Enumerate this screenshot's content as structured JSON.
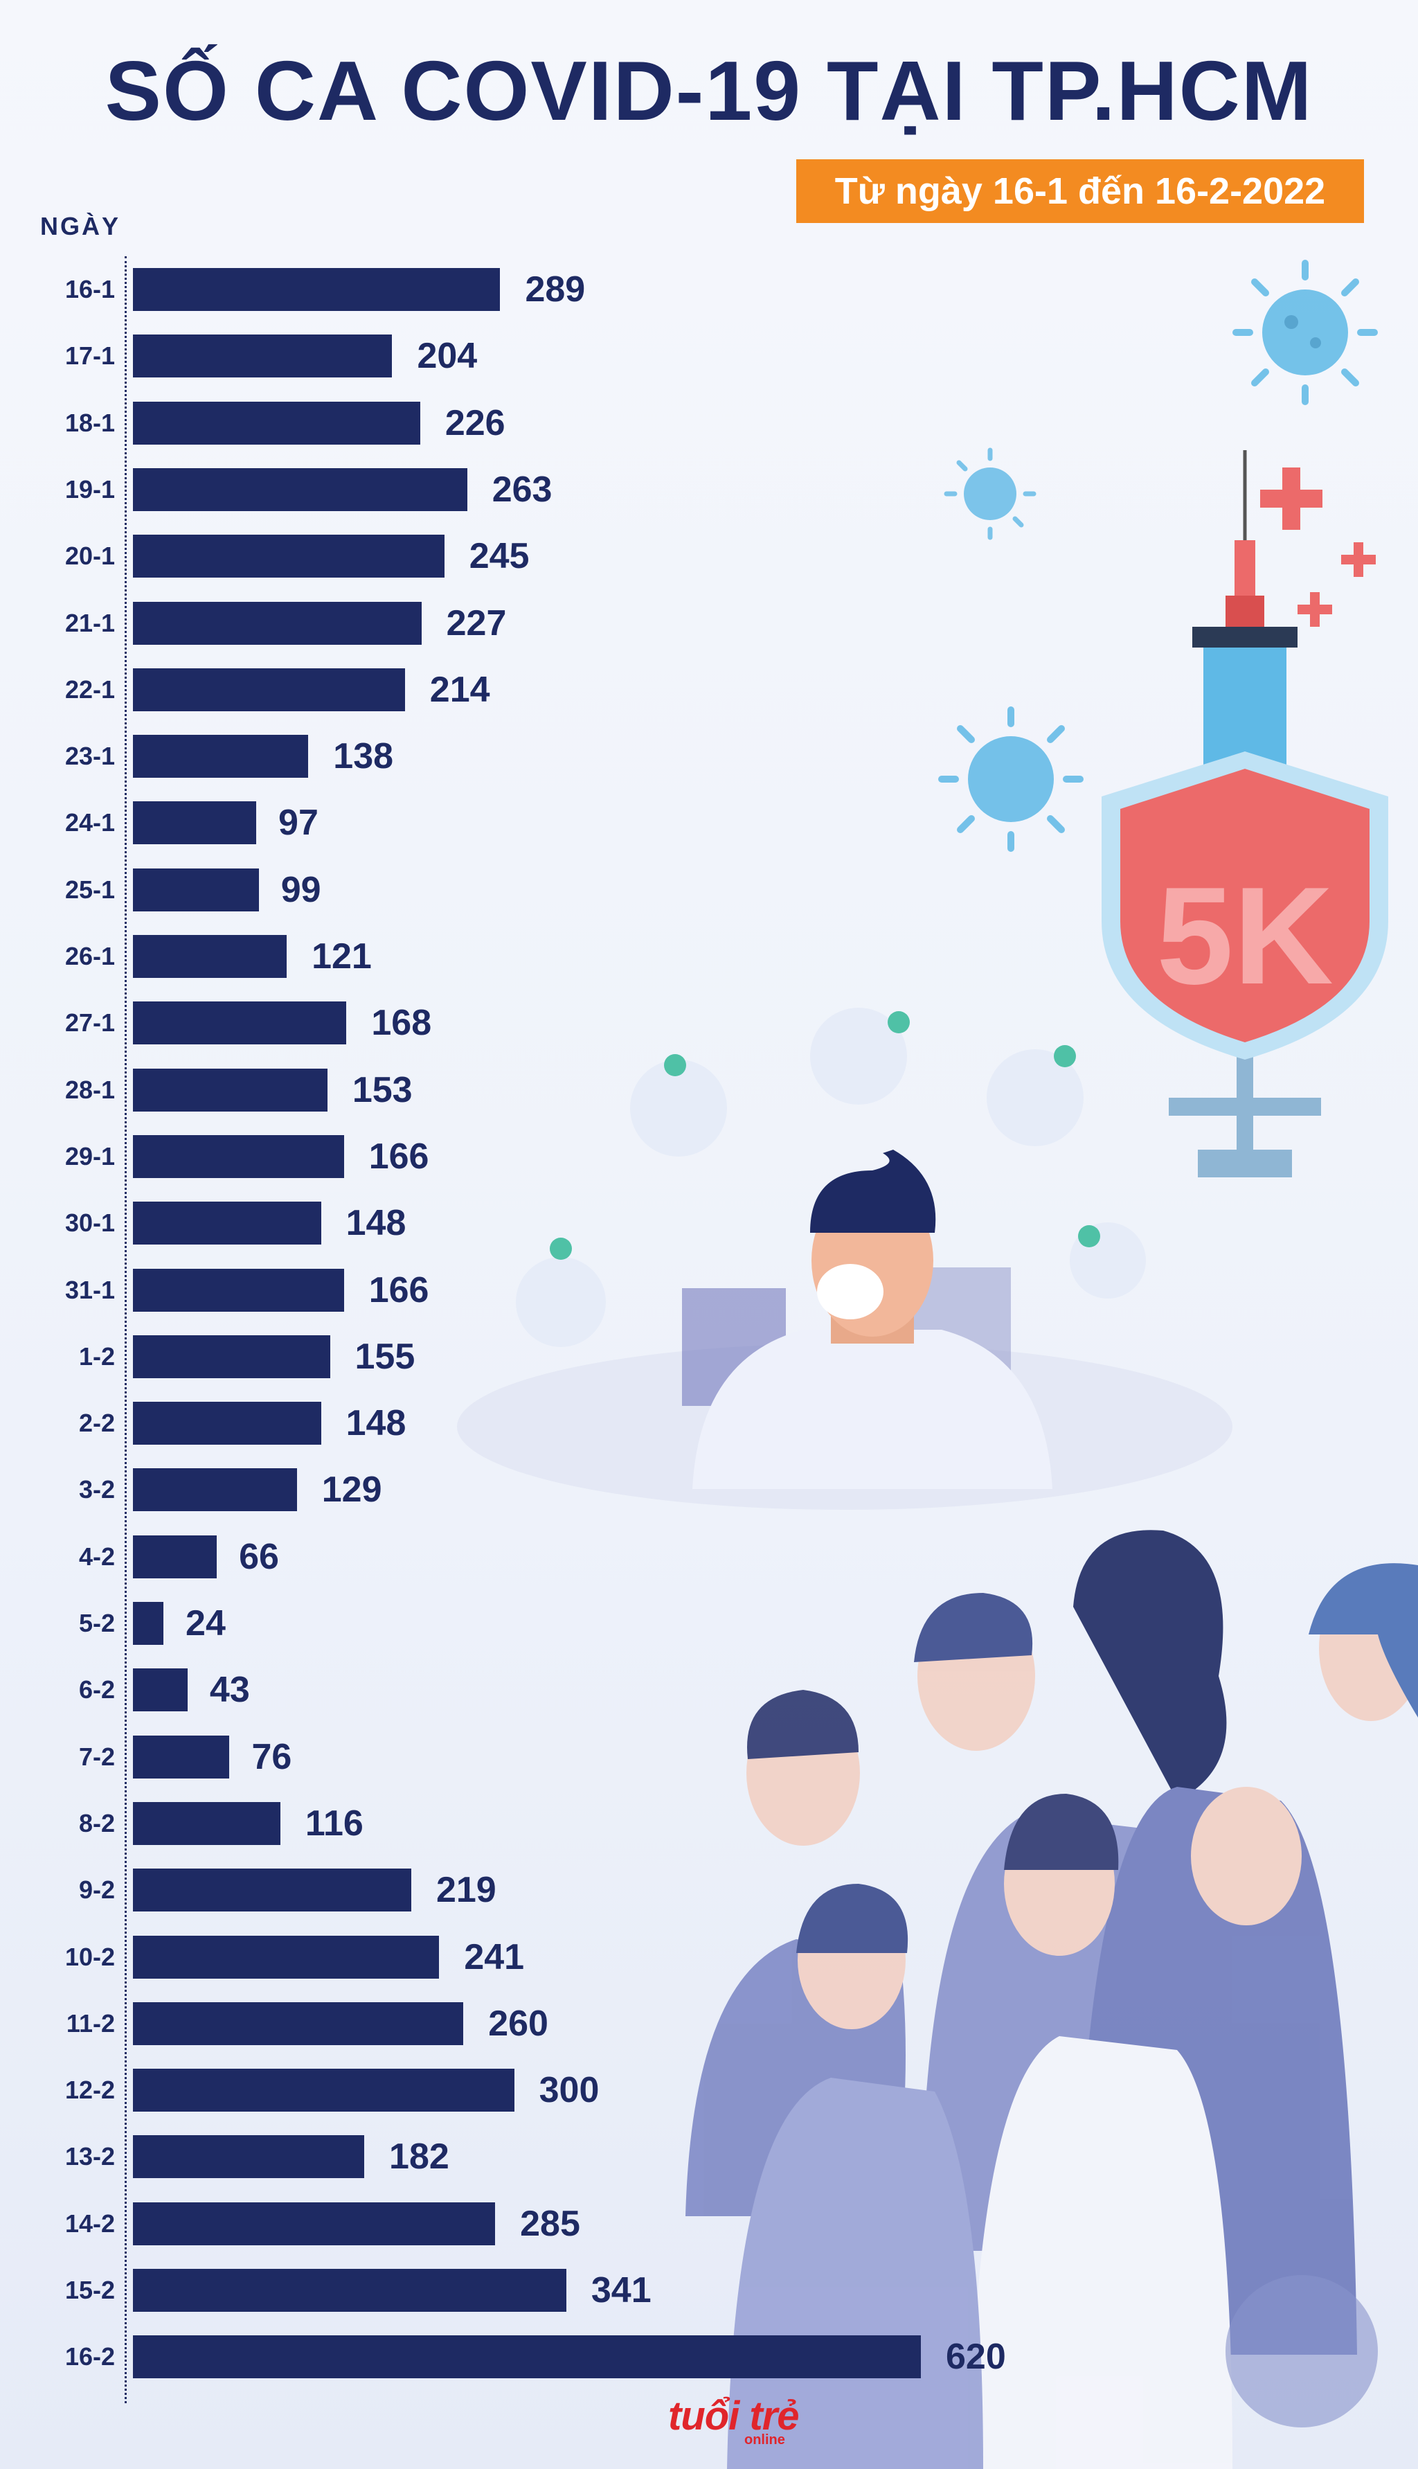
{
  "header": {
    "title": "SỐ CA COVID-19 TẠI TP.HCM",
    "subtitle": "Từ ngày 16-1 đến 16-2-2022"
  },
  "shield_text": "5K",
  "logo": {
    "main": "tuổi trẻ",
    "sub": "online"
  },
  "colors": {
    "bar": "#1e2a63",
    "accent": "#f38b21",
    "logo": "#e0252b"
  },
  "chart_data": {
    "type": "bar",
    "orientation": "horizontal",
    "title": "SỐ CA COVID-19 TẠI TP.HCM",
    "subtitle": "Từ ngày 16-1 đến 16-2-2022",
    "ylabel": "NGÀY",
    "xlabel": "",
    "xlim": [
      0,
      620
    ],
    "grid": false,
    "categories": [
      "16-1",
      "17-1",
      "18-1",
      "19-1",
      "20-1",
      "21-1",
      "22-1",
      "23-1",
      "24-1",
      "25-1",
      "26-1",
      "27-1",
      "28-1",
      "29-1",
      "30-1",
      "31-1",
      "1-2",
      "2-2",
      "3-2",
      "4-2",
      "5-2",
      "6-2",
      "7-2",
      "8-2",
      "9-2",
      "10-2",
      "11-2",
      "12-2",
      "13-2",
      "14-2",
      "15-2",
      "16-2"
    ],
    "values": [
      289,
      204,
      226,
      263,
      245,
      227,
      214,
      138,
      97,
      99,
      121,
      168,
      153,
      166,
      148,
      166,
      155,
      148,
      129,
      66,
      24,
      43,
      76,
      116,
      219,
      241,
      260,
      300,
      182,
      285,
      341,
      620
    ]
  }
}
